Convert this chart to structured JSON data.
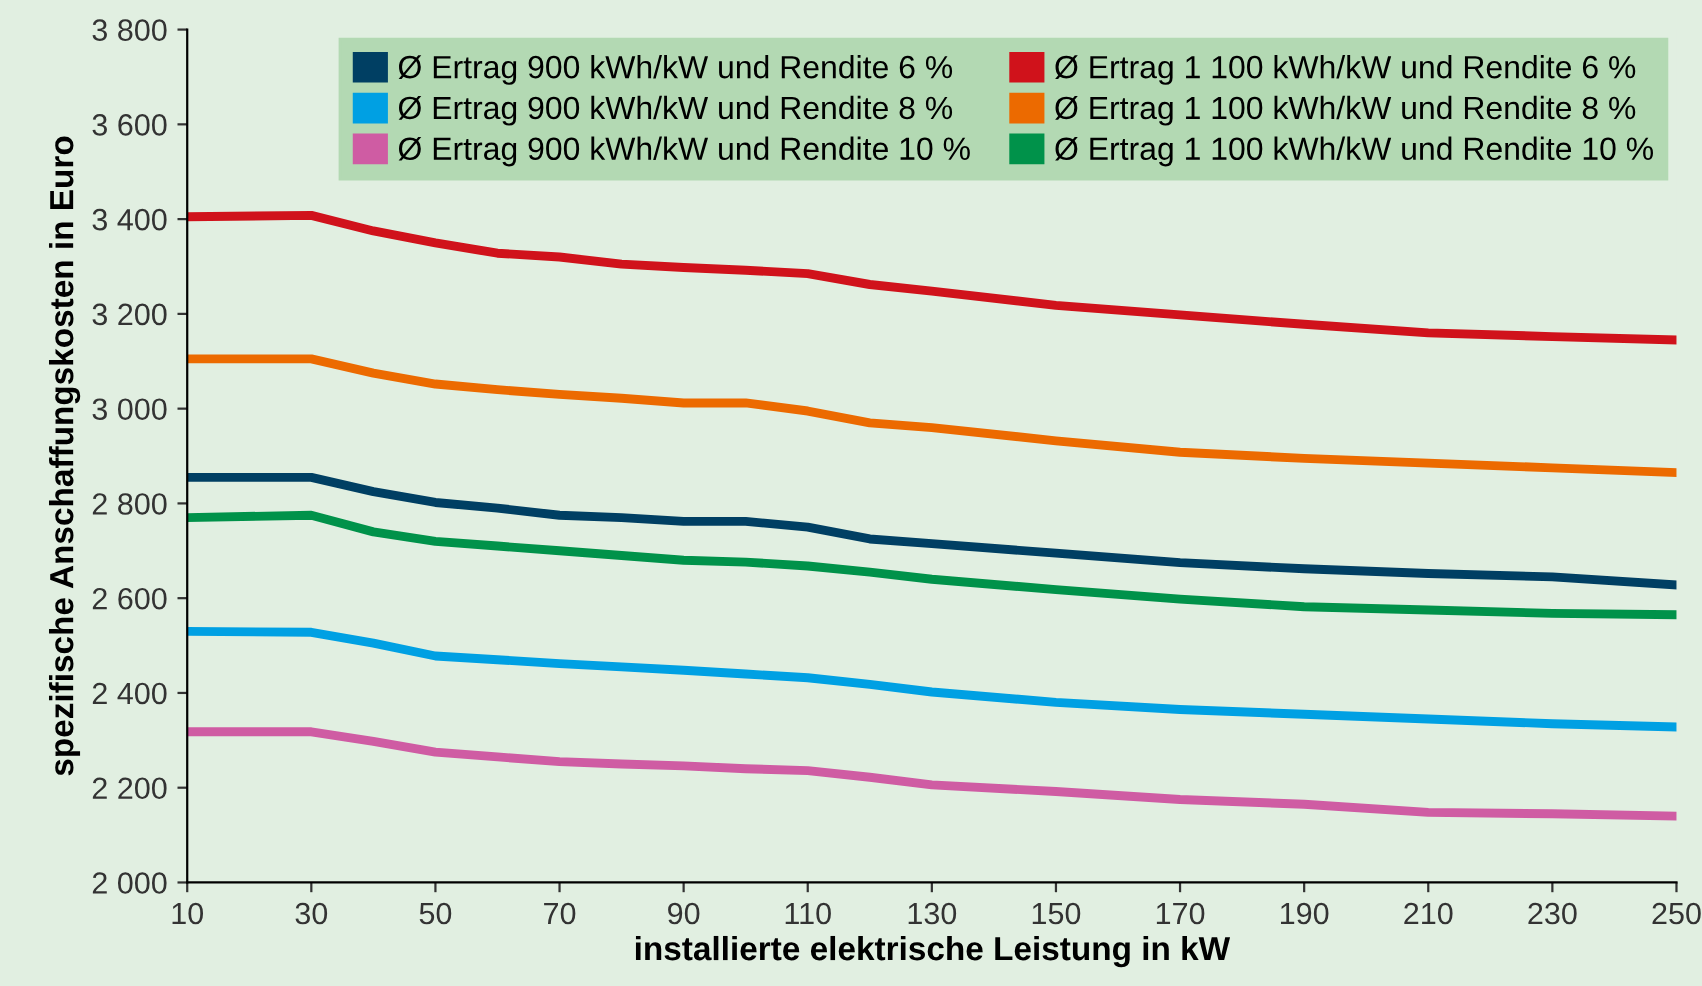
{
  "chart_data": {
    "type": "line",
    "xlabel": "installierte elektrische Leistung in kW",
    "ylabel": "spezifische Anschaffungskosten in Euro",
    "x": [
      10,
      30,
      40,
      50,
      60,
      70,
      80,
      90,
      100,
      110,
      120,
      130,
      150,
      170,
      190,
      210,
      230,
      250
    ],
    "series": [
      {
        "name": "Ø Ertrag 900 kWh/kW und Rendite 6 %",
        "color": "#003f63",
        "values": [
          2855,
          2855,
          2825,
          2802,
          2790,
          2775,
          2770,
          2762,
          2762,
          2750,
          2725,
          2715,
          2695,
          2675,
          2662,
          2652,
          2645,
          2628
        ]
      },
      {
        "name": "Ø Ertrag 900 kWh/kW und Rendite 8 %",
        "color": "#00a0e3",
        "values": [
          2530,
          2528,
          2505,
          2478,
          2470,
          2462,
          2455,
          2448,
          2440,
          2432,
          2418,
          2402,
          2380,
          2365,
          2355,
          2345,
          2335,
          2328
        ]
      },
      {
        "name": "Ø Ertrag 900 kWh/kW und Rendite 10 %",
        "color": "#cf5ca3",
        "values": [
          2318,
          2318,
          2298,
          2275,
          2265,
          2255,
          2250,
          2246,
          2240,
          2236,
          2222,
          2206,
          2192,
          2175,
          2165,
          2148,
          2145,
          2140
        ]
      },
      {
        "name": "Ø Ertrag 1 100 kWh/kW und Rendite 6 %",
        "color": "#d0121b",
        "values": [
          3405,
          3408,
          3375,
          3350,
          3328,
          3320,
          3305,
          3298,
          3292,
          3285,
          3262,
          3248,
          3218,
          3198,
          3178,
          3160,
          3152,
          3145
        ]
      },
      {
        "name": "Ø Ertrag 1 100 kWh/kW und Rendite 8 %",
        "color": "#ec6a00",
        "values": [
          3105,
          3105,
          3075,
          3052,
          3040,
          3030,
          3022,
          3012,
          3012,
          2995,
          2970,
          2960,
          2932,
          2908,
          2895,
          2885,
          2875,
          2865
        ]
      },
      {
        "name": "Ø Ertrag 1 100 kWh/kW und Rendite 10 %",
        "color": "#00924a",
        "values": [
          2770,
          2775,
          2740,
          2720,
          2710,
          2700,
          2690,
          2680,
          2676,
          2668,
          2655,
          2640,
          2618,
          2598,
          2582,
          2575,
          2568,
          2565
        ]
      }
    ],
    "xlim": [
      10,
      250
    ],
    "xticks": [
      10,
      30,
      50,
      70,
      90,
      110,
      130,
      150,
      170,
      190,
      210,
      230,
      250
    ],
    "ylim": [
      2000,
      3800
    ],
    "yticks": [
      {
        "value": 2000,
        "label": "2 000"
      },
      {
        "value": 2200,
        "label": "2 200"
      },
      {
        "value": 2400,
        "label": "2 400"
      },
      {
        "value": 2600,
        "label": "2 600"
      },
      {
        "value": 2800,
        "label": "2 800"
      },
      {
        "value": 3000,
        "label": "3 000"
      },
      {
        "value": 3200,
        "label": "3 200"
      },
      {
        "value": 3400,
        "label": "3 400"
      },
      {
        "value": 3600,
        "label": "3 600"
      },
      {
        "value": 3800,
        "label": "3 800"
      }
    ],
    "grid": false,
    "legend": "top right",
    "marker": "none",
    "line_style": "solid"
  }
}
